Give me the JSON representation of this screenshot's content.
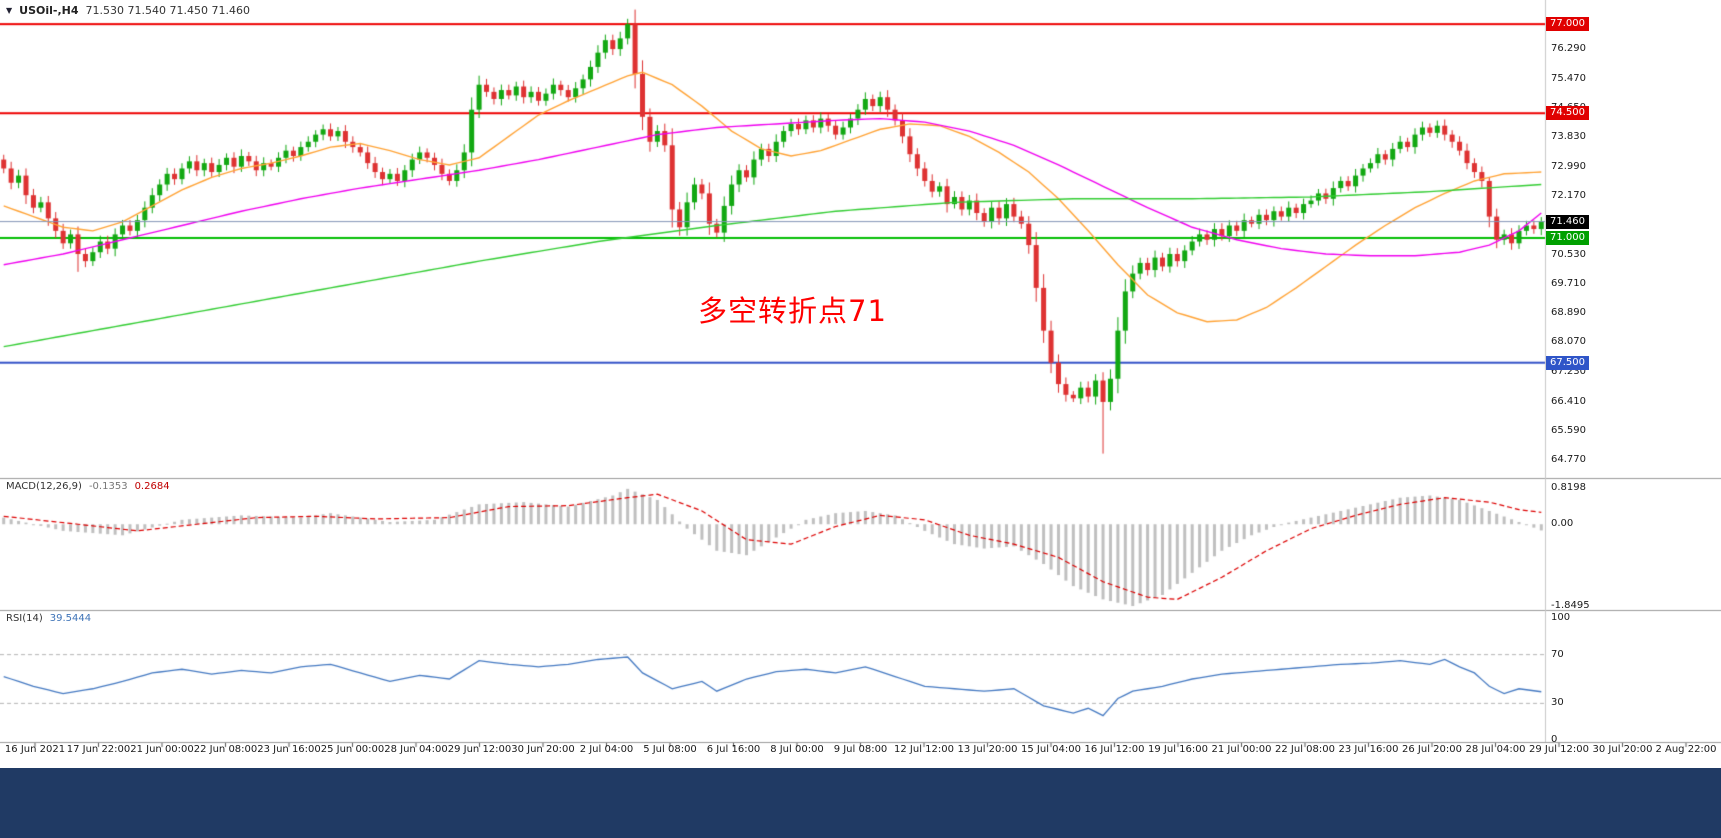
{
  "header": {
    "dropdown_icon": "▼",
    "title": "USOil-,H4",
    "ohlc": "71.530 71.540 71.450 71.460"
  },
  "annotation": {
    "text": "多空转折点71",
    "color": "#FF0000"
  },
  "colors": {
    "candle_up": "#12A812",
    "candle_down": "#DE3232",
    "ma_orange": "#FFA335",
    "ma_magenta": "#F000F0",
    "ma_green": "#32CD32",
    "hline_red": "#EE0000",
    "hline_green": "#00BE00",
    "hline_blue": "#3352C8",
    "current_price_line": "#8496B8",
    "macd_hist": "#C0C0C0",
    "macd_signal": "#DD0000",
    "rsi_line": "#4479C2",
    "rsi_level": "#B4B4B4",
    "separator": "#9A9A9A",
    "axis_border": "#C8C8C8",
    "bottom_bar": "#203A64"
  },
  "chart_data": {
    "type": "candlestick",
    "symbol": "USOil-",
    "timeframe": "H4",
    "ohlc_current": {
      "open": 71.53,
      "high": 71.54,
      "low": 71.45,
      "close": 71.46
    },
    "price_axis": {
      "max": 77.06,
      "min": 64.77,
      "ticks": [
        "77.060",
        "76.290",
        "75.470",
        "74.650",
        "73.830",
        "72.990",
        "72.170",
        "71.350",
        "70.530",
        "69.710",
        "68.890",
        "68.070",
        "67.230",
        "66.410",
        "65.590",
        "64.770"
      ]
    },
    "candles": {
      "first_open": 73.2,
      "closes": [
        72.95,
        72.55,
        72.75,
        72.2,
        71.85,
        72.0,
        71.55,
        71.2,
        70.85,
        71.1,
        70.55,
        70.35,
        70.6,
        70.9,
        70.7,
        71.1,
        71.35,
        71.2,
        71.5,
        71.85,
        72.2,
        72.5,
        72.8,
        72.65,
        72.95,
        73.15,
        72.9,
        73.1,
        72.85,
        73.05,
        73.25,
        73.0,
        73.3,
        73.15,
        72.9,
        73.1,
        73.0,
        73.25,
        73.45,
        73.3,
        73.55,
        73.7,
        73.9,
        74.05,
        73.85,
        74.0,
        73.7,
        73.55,
        73.4,
        73.1,
        72.85,
        72.65,
        72.8,
        72.6,
        72.9,
        73.2,
        73.4,
        73.25,
        73.05,
        72.8,
        72.6,
        72.9,
        73.4,
        74.6,
        75.3,
        75.1,
        74.9,
        75.15,
        75.0,
        75.25,
        74.95,
        75.1,
        74.85,
        75.05,
        75.3,
        75.15,
        74.95,
        75.2,
        75.45,
        75.8,
        76.2,
        76.55,
        76.3,
        76.6,
        77.0,
        75.6,
        74.4,
        73.7,
        74.0,
        73.6,
        71.8,
        71.3,
        72.0,
        72.5,
        72.25,
        71.4,
        71.15,
        71.9,
        72.5,
        72.9,
        72.7,
        73.2,
        73.5,
        73.3,
        73.7,
        74.0,
        74.2,
        74.05,
        74.3,
        74.1,
        74.35,
        74.15,
        73.9,
        74.1,
        74.35,
        74.6,
        74.9,
        74.7,
        74.95,
        74.6,
        74.3,
        73.85,
        73.35,
        72.95,
        72.6,
        72.3,
        72.45,
        71.95,
        72.15,
        71.8,
        72.05,
        71.7,
        71.45,
        71.85,
        71.55,
        71.95,
        71.6,
        71.4,
        70.8,
        69.6,
        68.4,
        67.5,
        66.9,
        66.6,
        66.5,
        66.8,
        66.55,
        67.0,
        66.4,
        67.05,
        68.4,
        69.5,
        70.0,
        70.3,
        70.1,
        70.45,
        70.2,
        70.55,
        70.35,
        70.65,
        70.9,
        71.1,
        70.95,
        71.25,
        71.05,
        71.35,
        71.2,
        71.5,
        71.4,
        71.65,
        71.5,
        71.75,
        71.6,
        71.85,
        71.7,
        71.95,
        72.05,
        72.25,
        72.1,
        72.4,
        72.6,
        72.45,
        72.75,
        72.95,
        73.1,
        73.35,
        73.2,
        73.5,
        73.7,
        73.55,
        73.9,
        74.1,
        73.95,
        74.15,
        73.9,
        73.7,
        73.45,
        73.1,
        72.85,
        72.6,
        71.6,
        70.95,
        71.1,
        70.85,
        71.2,
        71.35,
        71.25,
        71.46
      ],
      "special_wicks": {
        "10": {
          "low": 70.05
        },
        "84": {
          "high": 77.15
        },
        "148": {
          "low": 64.95
        },
        "200": {
          "high": 72.7
        }
      }
    },
    "moving_averages": [
      {
        "name": "ma-fast-orange",
        "color": "#FFA335",
        "anchors": [
          [
            0,
            71.9
          ],
          [
            4,
            71.6
          ],
          [
            8,
            71.3
          ],
          [
            12,
            71.2
          ],
          [
            16,
            71.45
          ],
          [
            20,
            71.9
          ],
          [
            24,
            72.35
          ],
          [
            28,
            72.7
          ],
          [
            32,
            72.95
          ],
          [
            36,
            73.1
          ],
          [
            40,
            73.3
          ],
          [
            44,
            73.55
          ],
          [
            48,
            73.65
          ],
          [
            52,
            73.45
          ],
          [
            56,
            73.2
          ],
          [
            60,
            73.05
          ],
          [
            64,
            73.25
          ],
          [
            68,
            73.85
          ],
          [
            72,
            74.45
          ],
          [
            76,
            74.85
          ],
          [
            80,
            75.2
          ],
          [
            84,
            75.55
          ],
          [
            86,
            75.65
          ],
          [
            90,
            75.3
          ],
          [
            94,
            74.7
          ],
          [
            98,
            74.0
          ],
          [
            102,
            73.5
          ],
          [
            106,
            73.3
          ],
          [
            110,
            73.45
          ],
          [
            114,
            73.75
          ],
          [
            118,
            74.05
          ],
          [
            122,
            74.2
          ],
          [
            126,
            74.15
          ],
          [
            130,
            73.85
          ],
          [
            134,
            73.4
          ],
          [
            138,
            72.85
          ],
          [
            142,
            72.1
          ],
          [
            146,
            71.2
          ],
          [
            150,
            70.25
          ],
          [
            154,
            69.4
          ],
          [
            158,
            68.9
          ],
          [
            162,
            68.65
          ],
          [
            166,
            68.7
          ],
          [
            170,
            69.05
          ],
          [
            174,
            69.6
          ],
          [
            178,
            70.2
          ],
          [
            182,
            70.8
          ],
          [
            186,
            71.35
          ],
          [
            190,
            71.85
          ],
          [
            194,
            72.25
          ],
          [
            198,
            72.6
          ],
          [
            202,
            72.8
          ],
          [
            207,
            72.85
          ]
        ]
      },
      {
        "name": "ma-mid-magenta",
        "color": "#F000F0",
        "anchors": [
          [
            0,
            70.25
          ],
          [
            8,
            70.55
          ],
          [
            16,
            70.95
          ],
          [
            24,
            71.35
          ],
          [
            32,
            71.75
          ],
          [
            40,
            72.1
          ],
          [
            48,
            72.4
          ],
          [
            56,
            72.65
          ],
          [
            64,
            72.9
          ],
          [
            72,
            73.2
          ],
          [
            80,
            73.55
          ],
          [
            88,
            73.9
          ],
          [
            96,
            74.1
          ],
          [
            104,
            74.2
          ],
          [
            112,
            74.3
          ],
          [
            118,
            74.35
          ],
          [
            124,
            74.25
          ],
          [
            130,
            74.0
          ],
          [
            136,
            73.6
          ],
          [
            142,
            73.05
          ],
          [
            148,
            72.45
          ],
          [
            154,
            71.85
          ],
          [
            160,
            71.3
          ],
          [
            166,
            70.95
          ],
          [
            172,
            70.7
          ],
          [
            178,
            70.55
          ],
          [
            184,
            70.5
          ],
          [
            190,
            70.5
          ],
          [
            196,
            70.6
          ],
          [
            200,
            70.8
          ],
          [
            204,
            71.2
          ],
          [
            207,
            71.7
          ]
        ]
      },
      {
        "name": "ma-slow-green",
        "color": "#32CD32",
        "anchors": [
          [
            0,
            67.95
          ],
          [
            16,
            68.55
          ],
          [
            32,
            69.15
          ],
          [
            48,
            69.75
          ],
          [
            64,
            70.35
          ],
          [
            80,
            70.9
          ],
          [
            96,
            71.35
          ],
          [
            112,
            71.75
          ],
          [
            128,
            72.0
          ],
          [
            144,
            72.1
          ],
          [
            160,
            72.1
          ],
          [
            176,
            72.15
          ],
          [
            192,
            72.3
          ],
          [
            207,
            72.5
          ]
        ]
      }
    ],
    "hlines": [
      {
        "price": 77.0,
        "color": "#EE0000",
        "width": 2,
        "tag": "77.000",
        "tag_bg": "#E00000"
      },
      {
        "price": 74.5,
        "color": "#EE0000",
        "width": 2,
        "tag": "74.500",
        "tag_bg": "#E00000"
      },
      {
        "price": 71.0,
        "color": "#00BE00",
        "width": 2,
        "tag": "71.000",
        "tag_bg": "#00A000"
      },
      {
        "price": 67.5,
        "color": "#3352C8",
        "width": 2,
        "tag": "67.500",
        "tag_bg": "#2F55C8"
      }
    ],
    "current_price": {
      "price": 71.46,
      "tag": "71.460",
      "tag_bg": "#000000",
      "line_color": "#8496B8"
    },
    "macd": {
      "label": "MACD(12,26,9)",
      "value_main": "-0.1353",
      "value_signal": "0.2684",
      "axis_ticks": [
        "0.8198",
        "0.00",
        "-1.8495"
      ],
      "range": {
        "max": 0.8198,
        "min": -1.8495
      },
      "hist_anchors": [
        [
          0,
          0.15
        ],
        [
          8,
          -0.15
        ],
        [
          16,
          -0.25
        ],
        [
          24,
          0.1
        ],
        [
          32,
          0.2
        ],
        [
          40,
          0.15
        ],
        [
          44,
          0.25
        ],
        [
          52,
          0.05
        ],
        [
          58,
          0.1
        ],
        [
          64,
          0.45
        ],
        [
          70,
          0.5
        ],
        [
          76,
          0.4
        ],
        [
          82,
          0.65
        ],
        [
          84,
          0.8
        ],
        [
          88,
          0.55
        ],
        [
          92,
          -0.1
        ],
        [
          96,
          -0.6
        ],
        [
          100,
          -0.7
        ],
        [
          104,
          -0.3
        ],
        [
          108,
          0.1
        ],
        [
          112,
          0.25
        ],
        [
          116,
          0.3
        ],
        [
          120,
          0.2
        ],
        [
          124,
          -0.15
        ],
        [
          128,
          -0.45
        ],
        [
          132,
          -0.55
        ],
        [
          136,
          -0.5
        ],
        [
          140,
          -0.9
        ],
        [
          144,
          -1.4
        ],
        [
          148,
          -1.7
        ],
        [
          152,
          -1.85
        ],
        [
          156,
          -1.6
        ],
        [
          160,
          -1.1
        ],
        [
          164,
          -0.6
        ],
        [
          168,
          -0.25
        ],
        [
          172,
          0.0
        ],
        [
          176,
          0.15
        ],
        [
          180,
          0.3
        ],
        [
          184,
          0.45
        ],
        [
          188,
          0.6
        ],
        [
          192,
          0.65
        ],
        [
          196,
          0.55
        ],
        [
          200,
          0.3
        ],
        [
          204,
          0.05
        ],
        [
          207,
          -0.14
        ]
      ],
      "signal_anchors": [
        [
          0,
          0.18
        ],
        [
          10,
          0.0
        ],
        [
          18,
          -0.15
        ],
        [
          26,
          0.0
        ],
        [
          34,
          0.15
        ],
        [
          42,
          0.18
        ],
        [
          50,
          0.12
        ],
        [
          60,
          0.15
        ],
        [
          68,
          0.4
        ],
        [
          76,
          0.42
        ],
        [
          84,
          0.6
        ],
        [
          88,
          0.68
        ],
        [
          94,
          0.3
        ],
        [
          100,
          -0.35
        ],
        [
          106,
          -0.45
        ],
        [
          112,
          -0.05
        ],
        [
          118,
          0.2
        ],
        [
          124,
          0.1
        ],
        [
          130,
          -0.25
        ],
        [
          136,
          -0.45
        ],
        [
          142,
          -0.75
        ],
        [
          148,
          -1.3
        ],
        [
          154,
          -1.65
        ],
        [
          158,
          -1.7
        ],
        [
          164,
          -1.2
        ],
        [
          170,
          -0.6
        ],
        [
          176,
          -0.1
        ],
        [
          182,
          0.2
        ],
        [
          188,
          0.45
        ],
        [
          194,
          0.6
        ],
        [
          200,
          0.5
        ],
        [
          204,
          0.33
        ],
        [
          207,
          0.27
        ]
      ]
    },
    "rsi": {
      "label": "RSI(14)",
      "value": "39.5444",
      "axis_ticks": [
        "100",
        "70",
        "30",
        "0"
      ],
      "range": {
        "max": 100,
        "min": 0
      },
      "levels": [
        70,
        30
      ],
      "anchors": [
        [
          0,
          52
        ],
        [
          4,
          44
        ],
        [
          8,
          38
        ],
        [
          12,
          42
        ],
        [
          16,
          48
        ],
        [
          20,
          55
        ],
        [
          24,
          58
        ],
        [
          28,
          54
        ],
        [
          32,
          57
        ],
        [
          36,
          55
        ],
        [
          40,
          60
        ],
        [
          44,
          62
        ],
        [
          48,
          55
        ],
        [
          52,
          48
        ],
        [
          56,
          53
        ],
        [
          60,
          50
        ],
        [
          64,
          65
        ],
        [
          68,
          62
        ],
        [
          72,
          60
        ],
        [
          76,
          62
        ],
        [
          80,
          66
        ],
        [
          84,
          68
        ],
        [
          86,
          55
        ],
        [
          90,
          42
        ],
        [
          94,
          48
        ],
        [
          96,
          40
        ],
        [
          100,
          50
        ],
        [
          104,
          56
        ],
        [
          108,
          58
        ],
        [
          112,
          55
        ],
        [
          116,
          60
        ],
        [
          120,
          52
        ],
        [
          124,
          44
        ],
        [
          128,
          42
        ],
        [
          132,
          40
        ],
        [
          136,
          42
        ],
        [
          140,
          28
        ],
        [
          144,
          22
        ],
        [
          146,
          26
        ],
        [
          148,
          20
        ],
        [
          150,
          34
        ],
        [
          152,
          40
        ],
        [
          156,
          44
        ],
        [
          160,
          50
        ],
        [
          164,
          54
        ],
        [
          168,
          56
        ],
        [
          172,
          58
        ],
        [
          176,
          60
        ],
        [
          180,
          62
        ],
        [
          184,
          63
        ],
        [
          188,
          65
        ],
        [
          192,
          62
        ],
        [
          194,
          66
        ],
        [
          196,
          60
        ],
        [
          198,
          55
        ],
        [
          200,
          44
        ],
        [
          202,
          38
        ],
        [
          204,
          42
        ],
        [
          207,
          39.54
        ]
      ]
    },
    "time_labels": [
      "16 Jun 2021",
      "17 Jun 22:00",
      "21 Jun 00:00",
      "22 Jun 08:00",
      "23 Jun 16:00",
      "25 Jun 00:00",
      "28 Jun 04:00",
      "29 Jun 12:00",
      "30 Jun 20:00",
      "2 Jul 04:00",
      "5 Jul 08:00",
      "6 Jul 16:00",
      "8 Jul 00:00",
      "9 Jul 08:00",
      "12 Jul 12:00",
      "13 Jul 20:00",
      "15 Jul 04:00",
      "16 Jul 12:00",
      "19 Jul 16:00",
      "21 Jul 00:00",
      "22 Jul 08:00",
      "23 Jul 16:00",
      "26 Jul 20:00",
      "28 Jul 04:00",
      "29 Jul 12:00",
      "30 Jul 20:00",
      "2 Aug 22:00"
    ]
  }
}
